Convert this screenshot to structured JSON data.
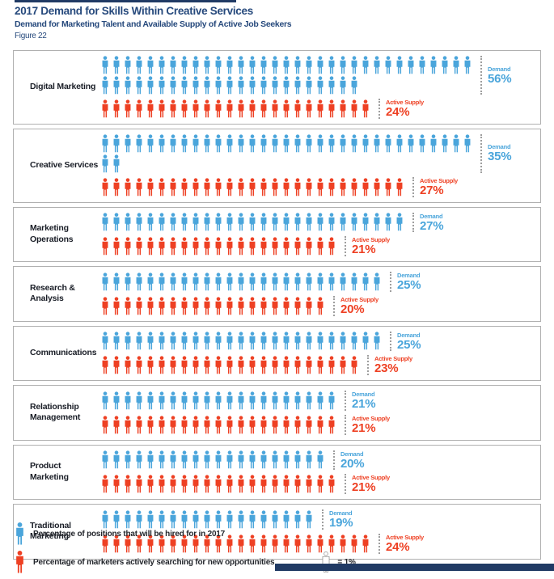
{
  "header": {
    "title": "2017 Demand for Skills Within Creative Services",
    "subtitle": "Demand for Marketing Talent and Available Supply of Active Job Seekers",
    "figure_label": "Figure 22"
  },
  "chart_data": {
    "type": "pictogram",
    "title": "2017 Demand for Skills Within Creative Services",
    "subtitle": "Demand for Marketing Talent and Available Supply of Active Job Seekers",
    "figure": "Figure 22",
    "unit": "1 icon = 1%",
    "categories": [
      "Digital Marketing",
      "Creative Services",
      "Marketing Operations",
      "Research & Analysis",
      "Communications",
      "Relationship Management",
      "Product Marketing",
      "Traditional Marketing"
    ],
    "series": [
      {
        "name": "Demand",
        "values": [
          56,
          35,
          27,
          25,
          25,
          21,
          20,
          19
        ],
        "color": "#4AA5DB"
      },
      {
        "name": "Active Supply",
        "values": [
          24,
          27,
          21,
          20,
          23,
          21,
          21,
          24
        ],
        "color": "#EE4023"
      }
    ],
    "value_suffix": "%",
    "legend_position": "bottom"
  },
  "legend": {
    "demand_text": "Percentage of positions that will be hired for in 2017",
    "supply_text": "Percentage of marketers actively searching for new opportunities",
    "unit_text": "= 1%"
  },
  "colors": {
    "demand": "#4AA5DB",
    "supply": "#EE4023",
    "title_navy": "#26497C",
    "category_text": "#191D26",
    "box_border": "#B0B0B0",
    "divider_dotted": "#9E9E9E"
  }
}
